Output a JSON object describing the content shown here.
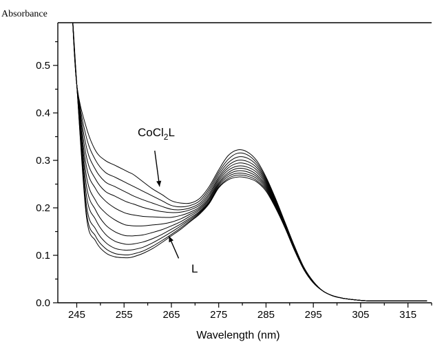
{
  "chart_data": {
    "type": "line",
    "title": "",
    "ylabel": "Absorbance",
    "xlabel": "Wavelength (nm)",
    "xlim": [
      241,
      320
    ],
    "ylim": [
      0,
      0.59
    ],
    "xticks": [
      "245",
      "255",
      "265",
      "275",
      "285",
      "295",
      "305",
      "315"
    ],
    "yticks": [
      "0.0",
      "0.1",
      "0.2",
      "0.3",
      "0.4",
      "0.5"
    ],
    "grid": false,
    "legend": "none",
    "x": [
      245,
      247,
      249,
      251,
      253,
      255,
      256,
      257,
      259,
      261,
      263,
      265,
      267,
      269,
      271,
      273,
      275,
      277,
      279,
      281,
      283,
      285,
      287,
      289,
      291,
      293,
      295,
      297,
      299,
      301,
      303,
      305,
      307,
      310,
      315,
      319
    ],
    "series": [
      {
        "values": [
          0.46,
          0.37,
          0.32,
          0.3,
          0.29,
          0.28,
          0.275,
          0.27,
          0.255,
          0.24,
          0.228,
          0.215,
          0.21,
          0.21,
          0.22,
          0.245,
          0.28,
          0.31,
          0.322,
          0.318,
          0.3,
          0.265,
          0.22,
          0.17,
          0.12,
          0.075,
          0.045,
          0.025,
          0.015,
          0.01,
          0.007,
          0.005,
          0.004,
          0.004,
          0.004,
          0.004
        ]
      },
      {
        "values": [
          0.46,
          0.35,
          0.3,
          0.275,
          0.265,
          0.255,
          0.25,
          0.245,
          0.235,
          0.225,
          0.215,
          0.205,
          0.202,
          0.205,
          0.215,
          0.24,
          0.275,
          0.302,
          0.315,
          0.312,
          0.295,
          0.262,
          0.218,
          0.168,
          0.118,
          0.074,
          0.044,
          0.025,
          0.015,
          0.01,
          0.007,
          0.005,
          0.004,
          0.004,
          0.004,
          0.004
        ]
      },
      {
        "values": [
          0.46,
          0.33,
          0.28,
          0.255,
          0.245,
          0.235,
          0.23,
          0.225,
          0.217,
          0.21,
          0.203,
          0.197,
          0.196,
          0.2,
          0.21,
          0.235,
          0.27,
          0.295,
          0.307,
          0.305,
          0.29,
          0.259,
          0.216,
          0.166,
          0.117,
          0.073,
          0.044,
          0.025,
          0.015,
          0.01,
          0.007,
          0.005,
          0.004,
          0.004,
          0.004,
          0.004
        ]
      },
      {
        "values": [
          0.46,
          0.31,
          0.26,
          0.235,
          0.225,
          0.215,
          0.211,
          0.208,
          0.201,
          0.196,
          0.192,
          0.19,
          0.191,
          0.196,
          0.206,
          0.23,
          0.265,
          0.289,
          0.3,
          0.298,
          0.285,
          0.256,
          0.214,
          0.165,
          0.116,
          0.073,
          0.044,
          0.025,
          0.015,
          0.01,
          0.007,
          0.005,
          0.004,
          0.004,
          0.004,
          0.004
        ]
      },
      {
        "values": [
          0.46,
          0.29,
          0.24,
          0.215,
          0.2,
          0.19,
          0.187,
          0.185,
          0.182,
          0.181,
          0.18,
          0.18,
          0.184,
          0.191,
          0.202,
          0.226,
          0.261,
          0.284,
          0.294,
          0.292,
          0.28,
          0.253,
          0.212,
          0.164,
          0.115,
          0.072,
          0.043,
          0.025,
          0.015,
          0.01,
          0.007,
          0.005,
          0.004,
          0.004,
          0.004,
          0.004
        ]
      },
      {
        "values": [
          0.46,
          0.27,
          0.215,
          0.19,
          0.175,
          0.165,
          0.163,
          0.162,
          0.162,
          0.164,
          0.166,
          0.17,
          0.177,
          0.187,
          0.199,
          0.222,
          0.257,
          0.279,
          0.288,
          0.286,
          0.275,
          0.25,
          0.21,
          0.163,
          0.114,
          0.072,
          0.043,
          0.025,
          0.015,
          0.01,
          0.007,
          0.005,
          0.004,
          0.004,
          0.004,
          0.004
        ]
      },
      {
        "values": [
          0.46,
          0.25,
          0.195,
          0.165,
          0.15,
          0.142,
          0.141,
          0.141,
          0.143,
          0.148,
          0.154,
          0.162,
          0.171,
          0.183,
          0.196,
          0.219,
          0.253,
          0.274,
          0.283,
          0.281,
          0.27,
          0.247,
          0.208,
          0.162,
          0.113,
          0.071,
          0.043,
          0.025,
          0.015,
          0.01,
          0.007,
          0.005,
          0.004,
          0.004,
          0.004,
          0.004
        ]
      },
      {
        "values": [
          0.46,
          0.23,
          0.175,
          0.145,
          0.13,
          0.124,
          0.123,
          0.124,
          0.128,
          0.135,
          0.144,
          0.155,
          0.166,
          0.179,
          0.193,
          0.216,
          0.25,
          0.27,
          0.278,
          0.276,
          0.266,
          0.244,
          0.206,
          0.161,
          0.113,
          0.071,
          0.043,
          0.025,
          0.015,
          0.01,
          0.007,
          0.005,
          0.004,
          0.004,
          0.004,
          0.004
        ]
      },
      {
        "values": [
          0.46,
          0.21,
          0.155,
          0.128,
          0.115,
          0.111,
          0.111,
          0.112,
          0.117,
          0.126,
          0.137,
          0.149,
          0.162,
          0.176,
          0.191,
          0.213,
          0.247,
          0.266,
          0.273,
          0.271,
          0.262,
          0.241,
          0.204,
          0.16,
          0.112,
          0.07,
          0.042,
          0.025,
          0.015,
          0.01,
          0.007,
          0.005,
          0.004,
          0.004,
          0.004,
          0.004
        ]
      },
      {
        "values": [
          0.46,
          0.195,
          0.14,
          0.115,
          0.104,
          0.101,
          0.101,
          0.103,
          0.109,
          0.119,
          0.131,
          0.144,
          0.158,
          0.173,
          0.189,
          0.211,
          0.244,
          0.262,
          0.269,
          0.267,
          0.258,
          0.238,
          0.202,
          0.159,
          0.111,
          0.07,
          0.042,
          0.025,
          0.015,
          0.01,
          0.007,
          0.005,
          0.004,
          0.004,
          0.004,
          0.004
        ]
      },
      {
        "values": [
          0.46,
          0.185,
          0.13,
          0.106,
          0.097,
          0.095,
          0.095,
          0.097,
          0.104,
          0.114,
          0.127,
          0.141,
          0.155,
          0.171,
          0.187,
          0.209,
          0.242,
          0.259,
          0.265,
          0.263,
          0.255,
          0.235,
          0.2,
          0.158,
          0.111,
          0.07,
          0.042,
          0.025,
          0.015,
          0.01,
          0.007,
          0.005,
          0.004,
          0.004,
          0.004,
          0.004
        ]
      }
    ],
    "annotations": [
      {
        "label": "CoCl",
        "sub": "2",
        "suffix": "L",
        "arrow": "down",
        "x": 262.5,
        "y": 0.245
      },
      {
        "label": "L",
        "arrow": "up",
        "x": 264.5,
        "y": 0.14
      }
    ]
  }
}
